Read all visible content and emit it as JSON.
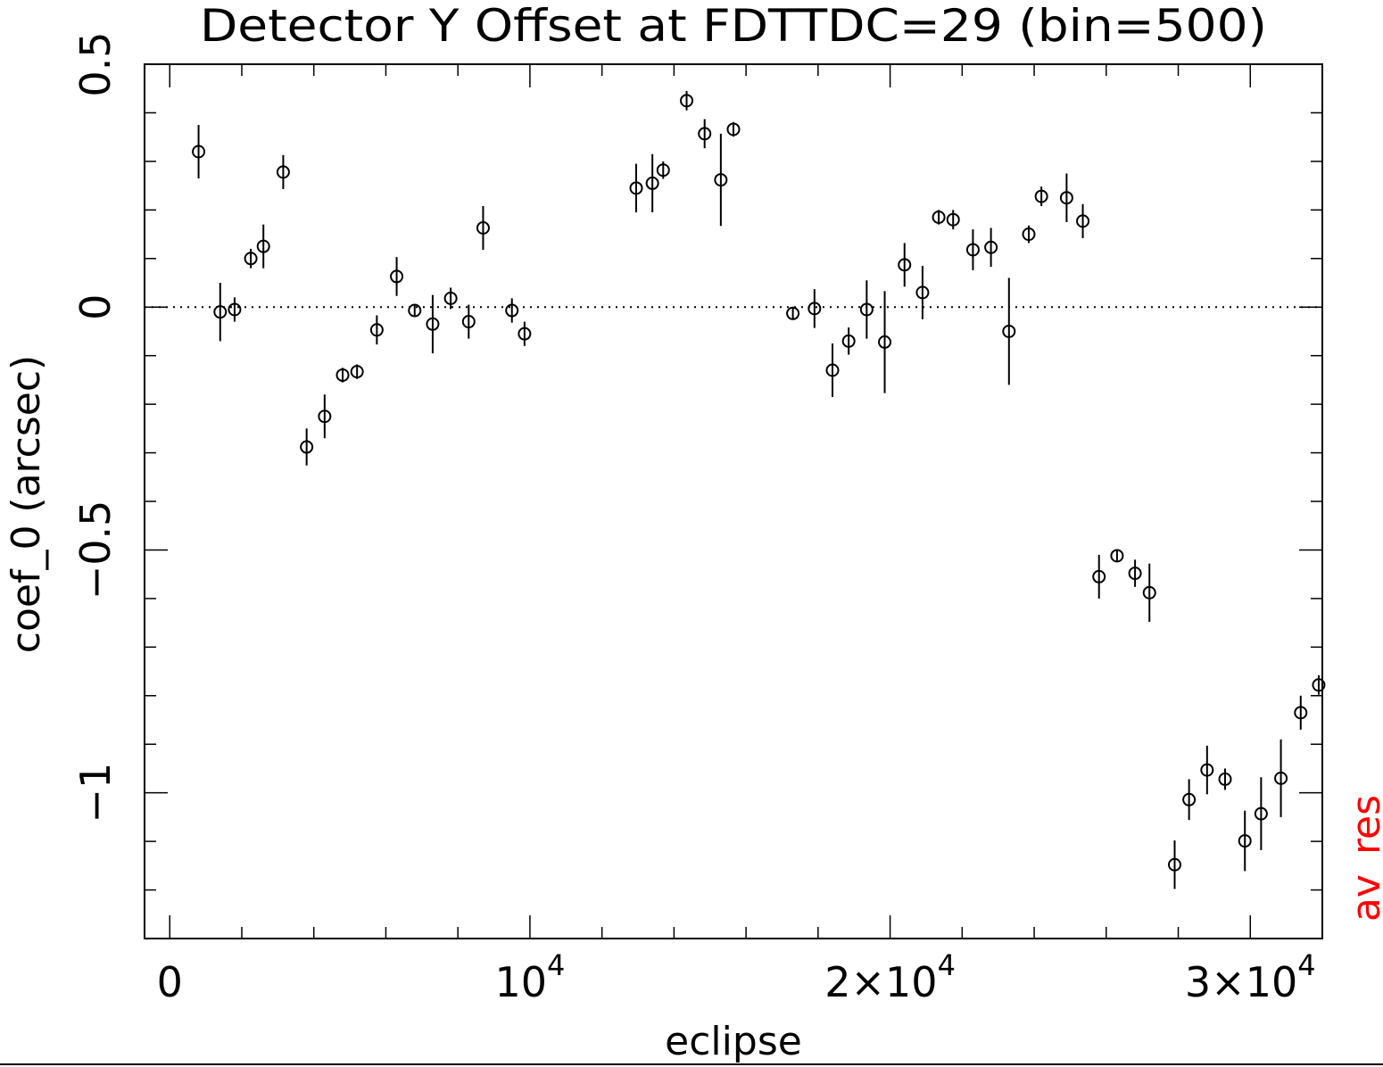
{
  "chart_data": {
    "type": "scatter",
    "title": "Detector Y Offset at FDTTDC=29 (bin=500)",
    "xlabel": "eclipse",
    "ylabel": "coef_0 (arcsec)",
    "right_label": "av_res",
    "xlim": [
      -700,
      32000
    ],
    "ylim": [
      -1.3,
      0.5
    ],
    "x_ticks": [
      {
        "value": 0,
        "label": "0",
        "base": "",
        "exp": ""
      },
      {
        "value": 10000,
        "label": "",
        "base": "10",
        "exp": "4"
      },
      {
        "value": 20000,
        "label": "",
        "base": "2×10",
        "exp": "4"
      },
      {
        "value": 30000,
        "label": "",
        "base": "3×10",
        "exp": "4"
      }
    ],
    "y_ticks": [
      {
        "value": 0.5,
        "label": "0.5"
      },
      {
        "value": 0,
        "label": "0"
      },
      {
        "value": -0.5,
        "label": "−0.5"
      },
      {
        "value": -1,
        "label": "−1"
      }
    ],
    "reference_line": 0,
    "grid": false,
    "colors": {
      "axes": "#000000",
      "points": "#000000",
      "right_label": "#ff0000"
    },
    "points": [
      {
        "x": 800,
        "y": 0.32,
        "err": 0.055
      },
      {
        "x": 1400,
        "y": -0.01,
        "err": 0.06
      },
      {
        "x": 1800,
        "y": -0.005,
        "err": 0.025
      },
      {
        "x": 2250,
        "y": 0.1,
        "err": 0.02
      },
      {
        "x": 2600,
        "y": 0.125,
        "err": 0.045
      },
      {
        "x": 3150,
        "y": 0.278,
        "err": 0.035
      },
      {
        "x": 3800,
        "y": -0.288,
        "err": 0.038
      },
      {
        "x": 4300,
        "y": -0.225,
        "err": 0.045
      },
      {
        "x": 4800,
        "y": -0.14,
        "err": 0.015
      },
      {
        "x": 5200,
        "y": -0.133,
        "err": 0.015
      },
      {
        "x": 5750,
        "y": -0.047,
        "err": 0.03
      },
      {
        "x": 6300,
        "y": 0.063,
        "err": 0.04
      },
      {
        "x": 6800,
        "y": -0.007,
        "err": 0.012
      },
      {
        "x": 7300,
        "y": -0.035,
        "err": 0.06
      },
      {
        "x": 7800,
        "y": 0.018,
        "err": 0.022
      },
      {
        "x": 8300,
        "y": -0.03,
        "err": 0.035
      },
      {
        "x": 8700,
        "y": 0.163,
        "err": 0.045
      },
      {
        "x": 9500,
        "y": -0.007,
        "err": 0.025
      },
      {
        "x": 9850,
        "y": -0.055,
        "err": 0.025
      },
      {
        "x": 12950,
        "y": 0.245,
        "err": 0.05
      },
      {
        "x": 13400,
        "y": 0.255,
        "err": 0.06
      },
      {
        "x": 13700,
        "y": 0.282,
        "err": 0.018
      },
      {
        "x": 14350,
        "y": 0.425,
        "err": 0.02
      },
      {
        "x": 14850,
        "y": 0.357,
        "err": 0.03
      },
      {
        "x": 15300,
        "y": 0.262,
        "err": 0.095
      },
      {
        "x": 15650,
        "y": 0.366,
        "err": 0.015
      },
      {
        "x": 17300,
        "y": -0.013,
        "err": 0.012
      },
      {
        "x": 17900,
        "y": -0.003,
        "err": 0.04
      },
      {
        "x": 18400,
        "y": -0.13,
        "err": 0.055
      },
      {
        "x": 18850,
        "y": -0.07,
        "err": 0.028
      },
      {
        "x": 19350,
        "y": -0.005,
        "err": 0.06
      },
      {
        "x": 19850,
        "y": -0.072,
        "err": 0.105
      },
      {
        "x": 20400,
        "y": 0.087,
        "err": 0.045
      },
      {
        "x": 20900,
        "y": 0.03,
        "err": 0.055
      },
      {
        "x": 21350,
        "y": 0.185,
        "err": 0.015
      },
      {
        "x": 21750,
        "y": 0.18,
        "err": 0.02
      },
      {
        "x": 22300,
        "y": 0.118,
        "err": 0.042
      },
      {
        "x": 22800,
        "y": 0.123,
        "err": 0.04
      },
      {
        "x": 23300,
        "y": -0.05,
        "err": 0.11
      },
      {
        "x": 23850,
        "y": 0.15,
        "err": 0.018
      },
      {
        "x": 24200,
        "y": 0.228,
        "err": 0.02
      },
      {
        "x": 24900,
        "y": 0.225,
        "err": 0.05
      },
      {
        "x": 25350,
        "y": 0.177,
        "err": 0.035
      },
      {
        "x": 25800,
        "y": -0.555,
        "err": 0.045
      },
      {
        "x": 26300,
        "y": -0.512,
        "err": 0.012
      },
      {
        "x": 26800,
        "y": -0.548,
        "err": 0.028
      },
      {
        "x": 27200,
        "y": -0.588,
        "err": 0.06
      },
      {
        "x": 27900,
        "y": -1.148,
        "err": 0.05
      },
      {
        "x": 28300,
        "y": -1.014,
        "err": 0.042
      },
      {
        "x": 28800,
        "y": -0.953,
        "err": 0.05
      },
      {
        "x": 29300,
        "y": -0.972,
        "err": 0.022
      },
      {
        "x": 29850,
        "y": -1.099,
        "err": 0.062
      },
      {
        "x": 30300,
        "y": -1.043,
        "err": 0.075
      },
      {
        "x": 30850,
        "y": -0.97,
        "err": 0.08
      },
      {
        "x": 31400,
        "y": -0.835,
        "err": 0.035
      },
      {
        "x": 31900,
        "y": -0.778,
        "err": 0.02
      }
    ]
  }
}
